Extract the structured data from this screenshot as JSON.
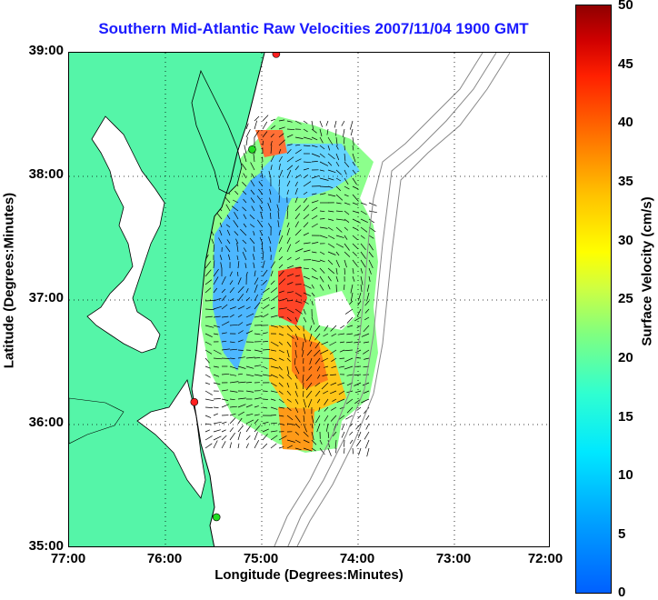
{
  "title": "Southern Mid-Atlantic Raw Velocities 2007/11/04 1900 GMT",
  "x_axis": {
    "label": "Longitude (Degrees:Minutes)",
    "ticks": [
      "77:00",
      "76:00",
      "75:00",
      "74:00",
      "73:00",
      "72:00"
    ]
  },
  "y_axis": {
    "label": "Latitude (Degrees:Minutes)",
    "ticks": [
      "39:00",
      "38:00",
      "37:00",
      "36:00",
      "35:00"
    ]
  },
  "colorbar": {
    "label": "Surface Velocity (cm/s)",
    "ticks": [
      "50",
      "45",
      "40",
      "35",
      "30",
      "25",
      "20",
      "15",
      "10",
      "5",
      "0"
    ],
    "range": [
      0,
      50
    ]
  },
  "colors": {
    "land": "#55f5a8",
    "title": "#1a1aff",
    "bathymetry": "#888888",
    "station_red": "#ff2020",
    "station_green": "#22dd22"
  },
  "stations": [
    {
      "lon": -74.85,
      "lat": 38.99,
      "status": "red"
    },
    {
      "lon": -75.1,
      "lat": 38.22,
      "status": "green"
    },
    {
      "lon": -75.7,
      "lat": 36.18,
      "status": "red"
    },
    {
      "lon": -75.47,
      "lat": 35.25,
      "status": "green"
    }
  ],
  "gridlines": true
}
